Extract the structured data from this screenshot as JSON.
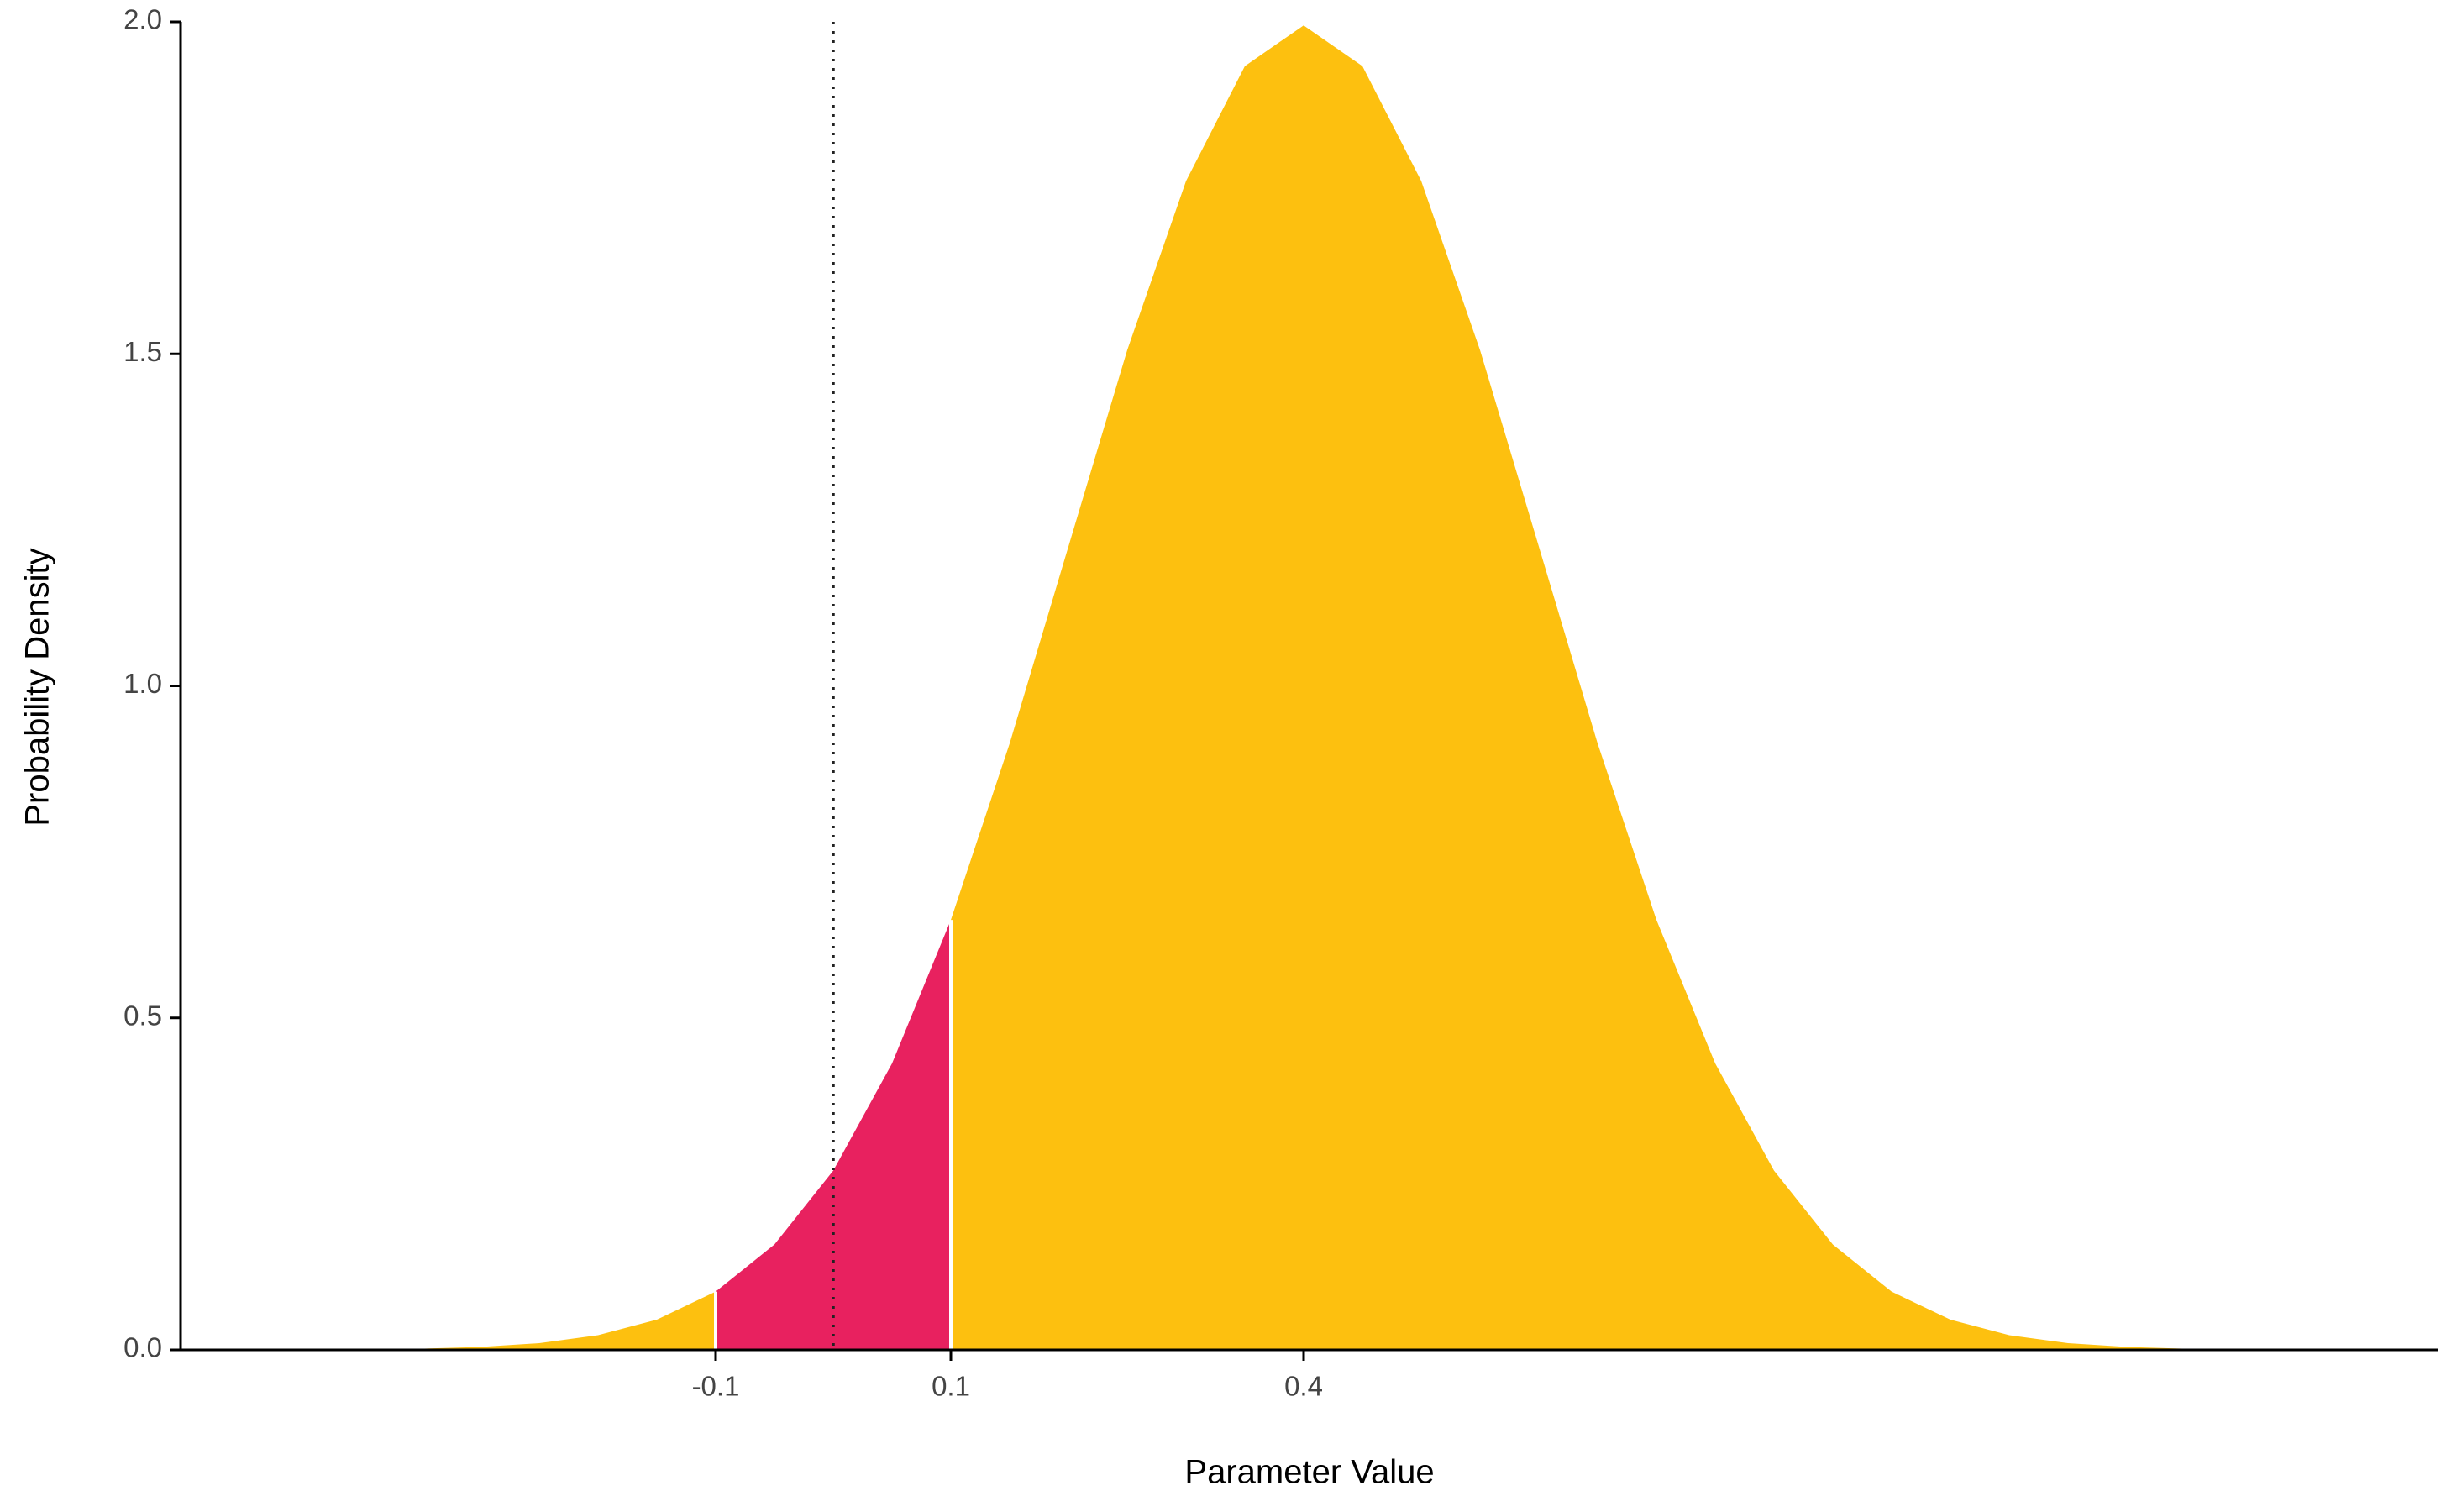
{
  "chart_data": {
    "type": "area",
    "x_label": "Parameter Value",
    "y_label": "Probability Density",
    "series": [
      {
        "color": "#FDC00F",
        "x": [
          -0.35,
          -0.3,
          -0.25,
          -0.2,
          -0.15,
          -0.1
        ],
        "values": [
          0.0018,
          0.0044,
          0.0101,
          0.0222,
          0.0455,
          0.0877
        ]
      },
      {
        "color": "#E8215F",
        "x": [
          -0.1,
          -0.05,
          0.0,
          0.05,
          0.1
        ],
        "values": [
          0.0877,
          0.1587,
          0.27,
          0.4314,
          0.6476
        ]
      },
      {
        "color": "#FDC00F",
        "x": [
          0.1,
          0.15,
          0.2,
          0.25,
          0.3,
          0.35,
          0.4,
          0.45,
          0.5,
          0.55,
          0.6,
          0.65,
          0.7,
          0.75,
          0.8,
          0.85,
          0.9,
          0.95,
          1.0,
          1.05,
          1.1,
          1.15
        ],
        "values": [
          0.6476,
          0.9132,
          1.2099,
          1.5057,
          1.7603,
          1.9333,
          1.9947,
          1.9333,
          1.7603,
          1.5057,
          1.2099,
          0.9132,
          0.6476,
          0.4314,
          0.27,
          0.1587,
          0.0877,
          0.0455,
          0.0222,
          0.0101,
          0.0044,
          0.0018
        ]
      }
    ],
    "vline": 0.0,
    "xlim": [
      -0.555,
      1.365
    ],
    "xticks": [
      -0.1,
      0.1,
      0.4
    ],
    "ylim": [
      0,
      2.0
    ],
    "yticks": [
      {
        "value": 0,
        "label": "0.0"
      },
      {
        "value": 0.5,
        "label": "0.5"
      },
      {
        "value": 1.0,
        "label": "1.0"
      },
      {
        "value": 1.5,
        "label": "1.5"
      },
      {
        "value": 2.0,
        "label": "2.0"
      }
    ]
  }
}
